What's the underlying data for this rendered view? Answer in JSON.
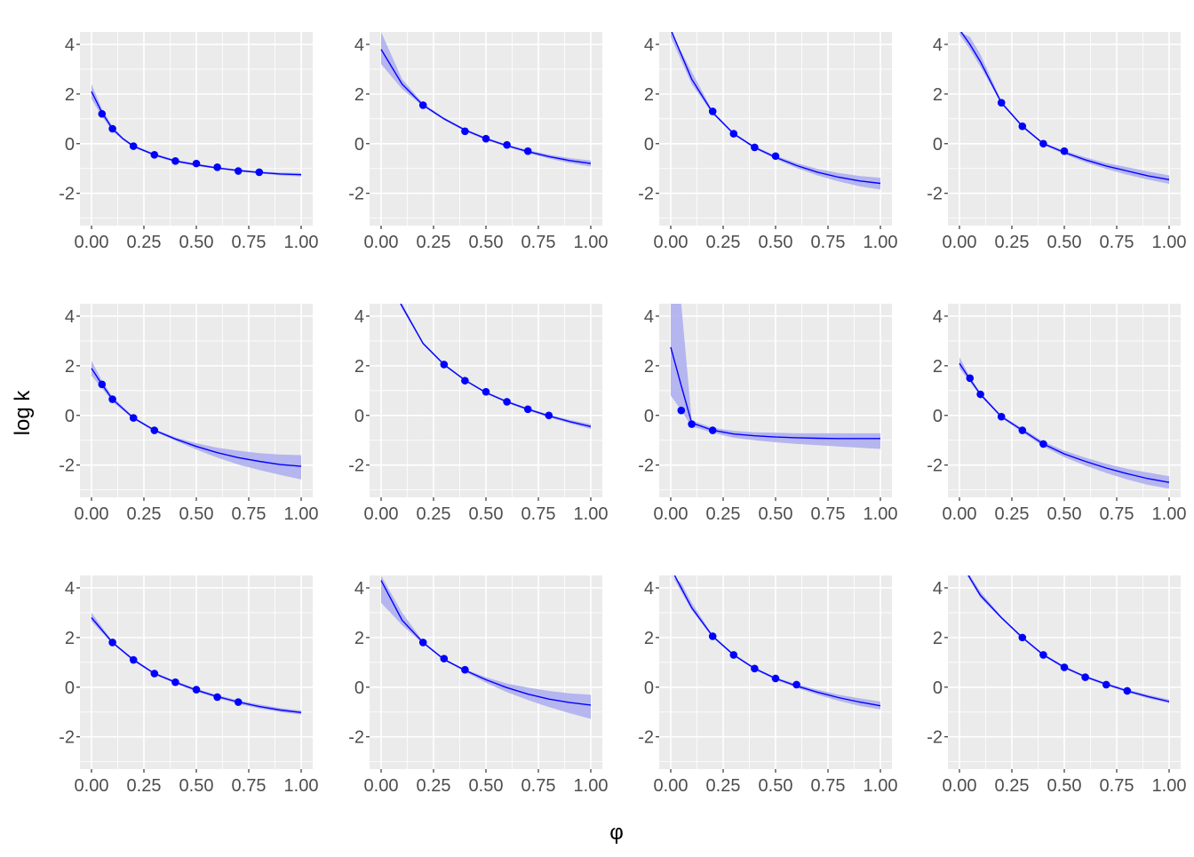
{
  "chart_data": {
    "type": "line",
    "layout": "facet-grid",
    "rows": 3,
    "cols": 4,
    "xlabel": "φ",
    "ylabel": "log k",
    "xlim": [
      0,
      1
    ],
    "ylim": [
      -3.3,
      4.5
    ],
    "x_ticks": [
      "0.00",
      "0.25",
      "0.50",
      "0.75",
      "1.00"
    ],
    "y_ticks": [
      "-2",
      "0",
      "2",
      "4"
    ],
    "colors": {
      "panel_bg": "#EBEBEB",
      "grid": "#FFFFFF",
      "line": "#0000FF",
      "band": "#AFAFF0",
      "point": "#0000FF"
    },
    "panels": [
      {
        "line": {
          "x": [
            0,
            0.05,
            0.1,
            0.15,
            0.2,
            0.3,
            0.4,
            0.5,
            0.6,
            0.7,
            0.8,
            0.9,
            1.0
          ],
          "y": [
            2.1,
            1.25,
            0.6,
            0.2,
            -0.1,
            -0.45,
            -0.7,
            -0.85,
            -0.98,
            -1.08,
            -1.16,
            -1.22,
            -1.25
          ]
        },
        "band_low": [
          1.8,
          1.1,
          0.5,
          0.15,
          -0.15,
          -0.5,
          -0.75,
          -0.9,
          -1.02,
          -1.12,
          -1.2,
          -1.28,
          -1.32
        ],
        "band_high": [
          2.4,
          1.4,
          0.7,
          0.25,
          -0.05,
          -0.4,
          -0.65,
          -0.8,
          -0.94,
          -1.04,
          -1.12,
          -1.16,
          -1.18
        ],
        "points": {
          "x": [
            0.05,
            0.1,
            0.2,
            0.3,
            0.4,
            0.5,
            0.6,
            0.7,
            0.8
          ],
          "y": [
            1.2,
            0.6,
            -0.1,
            -0.45,
            -0.7,
            -0.8,
            -0.95,
            -1.1,
            -1.15
          ]
        }
      },
      {
        "line": {
          "x": [
            0,
            0.1,
            0.2,
            0.3,
            0.4,
            0.5,
            0.6,
            0.7,
            0.8,
            0.9,
            1.0
          ],
          "y": [
            3.8,
            2.4,
            1.55,
            1.0,
            0.55,
            0.2,
            -0.08,
            -0.32,
            -0.52,
            -0.68,
            -0.8
          ]
        },
        "band_low": [
          3.2,
          2.2,
          1.5,
          0.95,
          0.5,
          0.15,
          -0.13,
          -0.38,
          -0.6,
          -0.78,
          -0.92
        ],
        "band_high": [
          4.5,
          2.6,
          1.62,
          1.05,
          0.6,
          0.25,
          -0.03,
          -0.26,
          -0.44,
          -0.58,
          -0.68
        ],
        "points": {
          "x": [
            0.2,
            0.4,
            0.5,
            0.6,
            0.7
          ],
          "y": [
            1.55,
            0.5,
            0.2,
            -0.05,
            -0.3
          ]
        }
      },
      {
        "line": {
          "x": [
            0,
            0.1,
            0.2,
            0.3,
            0.4,
            0.5,
            0.6,
            0.7,
            0.8,
            0.9,
            1.0
          ],
          "y": [
            4.6,
            2.6,
            1.25,
            0.4,
            -0.15,
            -0.55,
            -0.88,
            -1.15,
            -1.35,
            -1.5,
            -1.6
          ]
        },
        "band_low": [
          4.3,
          2.4,
          1.2,
          0.35,
          -0.2,
          -0.62,
          -0.98,
          -1.28,
          -1.52,
          -1.72,
          -1.85
        ],
        "band_high": [
          4.5,
          2.9,
          1.32,
          0.45,
          -0.1,
          -0.48,
          -0.78,
          -1.02,
          -1.18,
          -1.3,
          -1.38
        ],
        "points": {
          "x": [
            0.2,
            0.3,
            0.4,
            0.5
          ],
          "y": [
            1.3,
            0.4,
            -0.15,
            -0.5
          ]
        }
      },
      {
        "line": {
          "x": [
            0,
            0.05,
            0.1,
            0.2,
            0.3,
            0.4,
            0.5,
            0.6,
            0.7,
            0.8,
            0.9,
            1.0
          ],
          "y": [
            4.6,
            4.0,
            3.3,
            1.65,
            0.7,
            0.0,
            -0.35,
            -0.65,
            -0.9,
            -1.1,
            -1.3,
            -1.45
          ]
        },
        "band_low": [
          4.4,
          3.8,
          3.1,
          1.6,
          0.65,
          -0.05,
          -0.42,
          -0.75,
          -1.02,
          -1.25,
          -1.45,
          -1.62
        ],
        "band_high": [
          4.5,
          4.3,
          3.6,
          1.72,
          0.75,
          0.05,
          -0.28,
          -0.55,
          -0.78,
          -0.95,
          -1.12,
          -1.28
        ],
        "points": {
          "x": [
            0.2,
            0.3,
            0.4,
            0.5
          ],
          "y": [
            1.65,
            0.7,
            0.0,
            -0.3
          ]
        }
      },
      {
        "line": {
          "x": [
            0,
            0.05,
            0.1,
            0.2,
            0.3,
            0.4,
            0.5,
            0.6,
            0.7,
            0.8,
            0.9,
            1.0
          ],
          "y": [
            1.9,
            1.25,
            0.65,
            -0.1,
            -0.6,
            -0.95,
            -1.25,
            -1.5,
            -1.7,
            -1.85,
            -1.98,
            -2.05
          ]
        },
        "band_low": [
          1.6,
          1.1,
          0.55,
          -0.15,
          -0.65,
          -1.02,
          -1.38,
          -1.7,
          -1.98,
          -2.2,
          -2.4,
          -2.58
        ],
        "band_high": [
          2.2,
          1.4,
          0.75,
          -0.05,
          -0.55,
          -0.88,
          -1.12,
          -1.3,
          -1.42,
          -1.52,
          -1.58,
          -1.6
        ],
        "points": {
          "x": [
            0.05,
            0.1,
            0.2,
            0.3
          ],
          "y": [
            1.25,
            0.65,
            -0.1,
            -0.6
          ]
        }
      },
      {
        "line": {
          "x": [
            0,
            0.1,
            0.2,
            0.3,
            0.4,
            0.5,
            0.6,
            0.7,
            0.8,
            0.9,
            1.0
          ],
          "y": [
            6.0,
            4.4,
            2.9,
            2.05,
            1.42,
            0.92,
            0.55,
            0.25,
            -0.02,
            -0.25,
            -0.45
          ]
        },
        "band_low": [
          6.0,
          4.3,
          2.85,
          2.0,
          1.38,
          0.88,
          0.5,
          0.2,
          -0.08,
          -0.32,
          -0.55
        ],
        "band_high": [
          6.0,
          4.5,
          2.95,
          2.1,
          1.46,
          0.96,
          0.6,
          0.3,
          0.04,
          -0.18,
          -0.35
        ],
        "points": {
          "x": [
            0.3,
            0.4,
            0.5,
            0.6,
            0.7,
            0.8
          ],
          "y": [
            2.05,
            1.4,
            0.95,
            0.55,
            0.25,
            0.0
          ]
        }
      },
      {
        "line": {
          "x": [
            0,
            0.05,
            0.1,
            0.2,
            0.3,
            0.4,
            0.5,
            0.6,
            0.7,
            0.8,
            0.9,
            1.0
          ],
          "y": [
            2.75,
            1.2,
            -0.3,
            -0.6,
            -0.75,
            -0.82,
            -0.87,
            -0.9,
            -0.92,
            -0.93,
            -0.93,
            -0.93
          ]
        },
        "band_low": [
          0.8,
          0.2,
          -0.45,
          -0.7,
          -0.9,
          -1.0,
          -1.08,
          -1.15,
          -1.2,
          -1.25,
          -1.3,
          -1.35
        ],
        "band_high": [
          4.5,
          4.5,
          -0.2,
          -0.5,
          -0.62,
          -0.68,
          -0.7,
          -0.72,
          -0.72,
          -0.72,
          -0.72,
          -0.72
        ],
        "points": {
          "x": [
            0.05,
            0.1,
            0.2
          ],
          "y": [
            0.2,
            -0.35,
            -0.6
          ]
        }
      },
      {
        "line": {
          "x": [
            0,
            0.05,
            0.1,
            0.2,
            0.3,
            0.4,
            0.5,
            0.6,
            0.7,
            0.8,
            0.9,
            1.0
          ],
          "y": [
            2.1,
            1.45,
            0.85,
            -0.05,
            -0.6,
            -1.15,
            -1.55,
            -1.85,
            -2.12,
            -2.35,
            -2.55,
            -2.7
          ]
        },
        "band_low": [
          1.9,
          1.35,
          0.78,
          -0.1,
          -0.68,
          -1.25,
          -1.68,
          -2.02,
          -2.32,
          -2.58,
          -2.8,
          -2.95
        ],
        "band_high": [
          2.35,
          1.55,
          0.92,
          0.0,
          -0.52,
          -1.05,
          -1.42,
          -1.7,
          -1.95,
          -2.15,
          -2.3,
          -2.45
        ],
        "points": {
          "x": [
            0.05,
            0.1,
            0.2,
            0.3,
            0.4
          ],
          "y": [
            1.5,
            0.85,
            -0.05,
            -0.6,
            -1.15
          ]
        }
      },
      {
        "line": {
          "x": [
            0,
            0.1,
            0.2,
            0.3,
            0.4,
            0.5,
            0.6,
            0.7,
            0.8,
            0.9,
            1.0
          ],
          "y": [
            2.8,
            1.8,
            1.1,
            0.55,
            0.2,
            -0.12,
            -0.38,
            -0.6,
            -0.78,
            -0.92,
            -1.02
          ]
        },
        "band_low": [
          2.65,
          1.75,
          1.05,
          0.5,
          0.15,
          -0.18,
          -0.44,
          -0.67,
          -0.86,
          -1.0,
          -1.1
        ],
        "band_high": [
          3.0,
          1.85,
          1.15,
          0.6,
          0.25,
          -0.06,
          -0.32,
          -0.53,
          -0.7,
          -0.84,
          -0.94
        ],
        "points": {
          "x": [
            0.1,
            0.2,
            0.3,
            0.4,
            0.5,
            0.6,
            0.7
          ],
          "y": [
            1.8,
            1.1,
            0.55,
            0.2,
            -0.1,
            -0.4,
            -0.6
          ]
        }
      },
      {
        "line": {
          "x": [
            0,
            0.1,
            0.2,
            0.3,
            0.4,
            0.5,
            0.6,
            0.7,
            0.8,
            0.9,
            1.0
          ],
          "y": [
            4.3,
            2.7,
            1.8,
            1.12,
            0.68,
            0.3,
            -0.02,
            -0.28,
            -0.48,
            -0.62,
            -0.72
          ]
        },
        "band_low": [
          3.4,
          2.5,
          1.75,
          1.08,
          0.62,
          0.18,
          -0.2,
          -0.52,
          -0.8,
          -1.05,
          -1.28
        ],
        "band_high": [
          4.5,
          3.0,
          1.85,
          1.16,
          0.72,
          0.4,
          0.15,
          -0.02,
          -0.15,
          -0.25,
          -0.3
        ],
        "points": {
          "x": [
            0.2,
            0.3,
            0.4
          ],
          "y": [
            1.8,
            1.15,
            0.7
          ]
        }
      },
      {
        "line": {
          "x": [
            0,
            0.05,
            0.1,
            0.2,
            0.3,
            0.4,
            0.5,
            0.6,
            0.7,
            0.8,
            0.9,
            1.0
          ],
          "y": [
            4.8,
            4.0,
            3.2,
            2.05,
            1.3,
            0.75,
            0.35,
            0.05,
            -0.2,
            -0.42,
            -0.6,
            -0.75
          ]
        },
        "band_low": [
          4.6,
          3.85,
          3.1,
          2.0,
          1.25,
          0.7,
          0.3,
          -0.02,
          -0.3,
          -0.55,
          -0.75,
          -0.9
        ],
        "band_high": [
          4.5,
          4.2,
          3.4,
          2.1,
          1.35,
          0.8,
          0.4,
          0.12,
          -0.1,
          -0.3,
          -0.45,
          -0.58
        ],
        "points": {
          "x": [
            0.2,
            0.3,
            0.4,
            0.5,
            0.6
          ],
          "y": [
            2.05,
            1.3,
            0.75,
            0.35,
            0.1
          ]
        }
      },
      {
        "line": {
          "x": [
            0,
            0.05,
            0.1,
            0.2,
            0.3,
            0.4,
            0.5,
            0.6,
            0.7,
            0.8,
            0.9,
            1.0
          ],
          "y": [
            5.2,
            4.4,
            3.7,
            2.8,
            2.0,
            1.3,
            0.8,
            0.42,
            0.12,
            -0.15,
            -0.38,
            -0.58
          ]
        },
        "band_low": [
          5.0,
          4.3,
          3.6,
          2.75,
          1.95,
          1.25,
          0.75,
          0.37,
          0.07,
          -0.21,
          -0.45,
          -0.65
        ],
        "band_high": [
          4.5,
          4.5,
          3.85,
          2.85,
          2.05,
          1.35,
          0.85,
          0.47,
          0.17,
          -0.09,
          -0.31,
          -0.5
        ],
        "points": {
          "x": [
            0.3,
            0.4,
            0.5,
            0.6,
            0.7,
            0.8
          ],
          "y": [
            2.0,
            1.3,
            0.8,
            0.4,
            0.1,
            -0.15
          ]
        }
      }
    ]
  }
}
